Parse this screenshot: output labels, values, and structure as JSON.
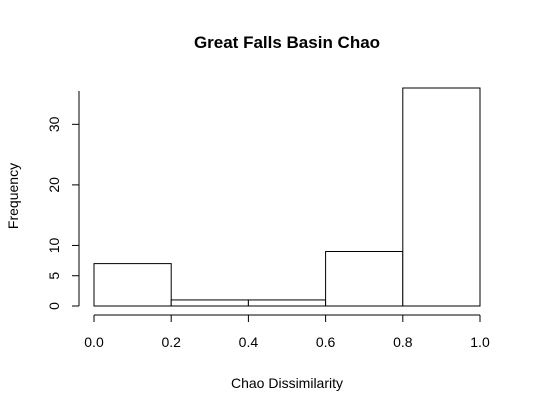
{
  "chart_data": {
    "type": "bar",
    "title": "Great Falls Basin Chao",
    "xlabel": "Chao Dissimilarity",
    "ylabel": "Frequency",
    "bins": [
      {
        "start": 0.0,
        "end": 0.2,
        "count": 7
      },
      {
        "start": 0.2,
        "end": 0.4,
        "count": 1
      },
      {
        "start": 0.4,
        "end": 0.6,
        "count": 1
      },
      {
        "start": 0.6,
        "end": 0.8,
        "count": 9
      },
      {
        "start": 0.8,
        "end": 1.0,
        "count": 36
      }
    ],
    "xlim": [
      0.0,
      1.0
    ],
    "ylim": [
      0,
      36
    ],
    "x_ticks": [
      0.0,
      0.2,
      0.4,
      0.6,
      0.8,
      1.0
    ],
    "x_tick_labels": [
      "0.0",
      "0.2",
      "0.4",
      "0.6",
      "0.8",
      "1.0"
    ],
    "y_ticks": [
      0,
      5,
      10,
      20,
      30
    ],
    "y_tick_labels": [
      "0",
      "5",
      "10",
      "20",
      "30"
    ],
    "grid": false,
    "colors": {
      "bar_fill": "#ffffff",
      "bar_stroke": "#000000"
    }
  }
}
